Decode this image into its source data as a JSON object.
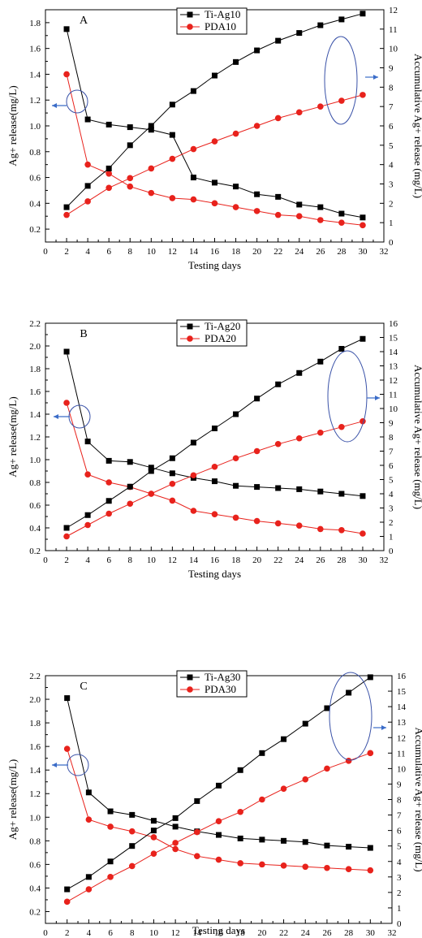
{
  "chart_data": [
    {
      "type": "line",
      "panel_label": "A",
      "xlabel": "Testing days",
      "ylabel_left": "Ag+ release(mg/L)",
      "ylabel_right": "Accumulative Ag+ release (mg/L)",
      "xlim": [
        0,
        32
      ],
      "x_ticks": [
        0,
        2,
        4,
        6,
        8,
        10,
        12,
        14,
        16,
        18,
        20,
        22,
        24,
        26,
        28,
        30,
        32
      ],
      "ylim_left": [
        0.1,
        1.9
      ],
      "y_ticks_left": [
        0.2,
        0.4,
        0.6,
        0.8,
        1.0,
        1.2,
        1.4,
        1.6,
        1.8
      ],
      "ylim_right": [
        0,
        12
      ],
      "y_ticks_right": [
        0,
        1,
        2,
        3,
        4,
        5,
        6,
        7,
        8,
        9,
        10,
        11,
        12
      ],
      "legend_position": "top-center",
      "x": [
        2,
        4,
        6,
        8,
        10,
        12,
        14,
        16,
        18,
        20,
        22,
        24,
        26,
        28,
        30
      ],
      "series": [
        {
          "name": "Ti-Ag10",
          "axis": "left",
          "color": "#000000",
          "marker": "square",
          "values": [
            1.75,
            1.05,
            1.01,
            0.99,
            0.97,
            0.93,
            0.6,
            0.56,
            0.53,
            0.47,
            0.45,
            0.39,
            0.37,
            0.32,
            0.29
          ]
        },
        {
          "name": "PDA10",
          "axis": "left",
          "color": "#e8221c",
          "marker": "circle",
          "values": [
            1.4,
            0.7,
            0.63,
            0.53,
            0.48,
            0.44,
            0.43,
            0.4,
            0.37,
            0.34,
            0.31,
            0.3,
            0.27,
            0.25,
            0.23
          ]
        },
        {
          "name": "Ti-Ag10 accumulative",
          "axis": "right",
          "color": "#000000",
          "marker": "square",
          "values": [
            1.8,
            2.9,
            3.8,
            5.0,
            6.0,
            7.1,
            7.8,
            8.6,
            9.3,
            9.9,
            10.4,
            10.8,
            11.2,
            11.5,
            11.8
          ]
        },
        {
          "name": "PDA10 accumulative",
          "axis": "right",
          "color": "#e8221c",
          "marker": "circle",
          "values": [
            1.4,
            2.1,
            2.8,
            3.3,
            3.8,
            4.3,
            4.8,
            5.2,
            5.6,
            6.0,
            6.4,
            6.7,
            7.0,
            7.3,
            7.6
          ]
        }
      ]
    },
    {
      "type": "line",
      "panel_label": "B",
      "xlabel": "Testing days",
      "ylabel_left": "Ag+ release(mg/L)",
      "ylabel_right": "Accumulative Ag+ release (mg/L)",
      "xlim": [
        0,
        32
      ],
      "x_ticks": [
        0,
        2,
        4,
        6,
        8,
        10,
        12,
        14,
        16,
        18,
        20,
        22,
        24,
        26,
        28,
        30,
        32
      ],
      "ylim_left": [
        0.2,
        2.2
      ],
      "y_ticks_left": [
        0.2,
        0.4,
        0.6,
        0.8,
        1.0,
        1.2,
        1.4,
        1.6,
        1.8,
        2.0,
        2.2
      ],
      "ylim_right": [
        0,
        16
      ],
      "y_ticks_right": [
        0,
        1,
        2,
        3,
        4,
        5,
        6,
        7,
        8,
        9,
        10,
        11,
        12,
        13,
        14,
        15,
        16
      ],
      "legend_position": "top-center",
      "x": [
        2,
        4,
        6,
        8,
        10,
        12,
        14,
        16,
        18,
        20,
        22,
        24,
        26,
        28,
        30
      ],
      "series": [
        {
          "name": "Ti-Ag20",
          "axis": "left",
          "color": "#000000",
          "marker": "square",
          "values": [
            1.95,
            1.16,
            0.99,
            0.98,
            0.93,
            0.88,
            0.84,
            0.81,
            0.77,
            0.76,
            0.75,
            0.74,
            0.72,
            0.7,
            0.68
          ]
        },
        {
          "name": "PDA20",
          "axis": "left",
          "color": "#e8221c",
          "marker": "circle",
          "values": [
            1.5,
            0.87,
            0.8,
            0.76,
            0.7,
            0.64,
            0.55,
            0.52,
            0.49,
            0.46,
            0.44,
            0.42,
            0.39,
            0.38,
            0.35
          ]
        },
        {
          "name": "Ti-Ag20 accumulative",
          "axis": "right",
          "color": "#000000",
          "marker": "square",
          "values": [
            1.6,
            2.5,
            3.5,
            4.5,
            5.6,
            6.5,
            7.6,
            8.6,
            9.6,
            10.7,
            11.7,
            12.5,
            13.3,
            14.2,
            14.9
          ]
        },
        {
          "name": "PDA20 accumulative",
          "axis": "right",
          "color": "#e8221c",
          "marker": "circle",
          "values": [
            1.0,
            1.8,
            2.6,
            3.3,
            4.0,
            4.7,
            5.3,
            5.9,
            6.5,
            7.0,
            7.5,
            7.9,
            8.3,
            8.7,
            9.1
          ]
        }
      ]
    },
    {
      "type": "line",
      "panel_label": "C",
      "xlabel": "Testing days",
      "ylabel_left": "Ag+ release(mg/L)",
      "ylabel_right": "Accumulative Ag+ release (mg/L)",
      "xlim": [
        0,
        32
      ],
      "x_ticks": [
        0,
        2,
        4,
        6,
        8,
        10,
        12,
        14,
        16,
        18,
        20,
        22,
        24,
        26,
        28,
        30,
        32
      ],
      "ylim_left": [
        0.1,
        2.2
      ],
      "y_ticks_left": [
        0.2,
        0.4,
        0.6,
        0.8,
        1.0,
        1.2,
        1.4,
        1.6,
        1.8,
        2.0,
        2.2
      ],
      "ylim_right": [
        0,
        16
      ],
      "y_ticks_right": [
        0,
        1,
        2,
        3,
        4,
        5,
        6,
        7,
        8,
        9,
        10,
        11,
        12,
        13,
        14,
        15,
        16
      ],
      "legend_position": "top-center",
      "x": [
        2,
        4,
        6,
        8,
        10,
        12,
        14,
        16,
        18,
        20,
        22,
        24,
        26,
        28,
        30
      ],
      "series": [
        {
          "name": "Ti-Ag30",
          "axis": "left",
          "color": "#000000",
          "marker": "square",
          "values": [
            2.01,
            1.21,
            1.05,
            1.02,
            0.97,
            0.92,
            0.88,
            0.85,
            0.82,
            0.81,
            0.8,
            0.79,
            0.76,
            0.75,
            0.74
          ]
        },
        {
          "name": "PDA30",
          "axis": "left",
          "color": "#e8221c",
          "marker": "circle",
          "values": [
            1.58,
            0.98,
            0.92,
            0.88,
            0.83,
            0.73,
            0.67,
            0.64,
            0.61,
            0.6,
            0.59,
            0.58,
            0.57,
            0.56,
            0.55
          ]
        },
        {
          "name": "Ti-Ag30 accumulative",
          "axis": "right",
          "color": "#000000",
          "marker": "square",
          "values": [
            2.2,
            3.0,
            4.0,
            5.0,
            6.0,
            6.8,
            7.9,
            8.9,
            9.9,
            11.0,
            11.9,
            12.9,
            13.9,
            14.9,
            15.9
          ]
        },
        {
          "name": "PDA30 accumulative",
          "axis": "right",
          "color": "#e8221c",
          "marker": "circle",
          "values": [
            1.4,
            2.2,
            3.0,
            3.7,
            4.5,
            5.2,
            5.9,
            6.6,
            7.2,
            8.0,
            8.7,
            9.3,
            10.0,
            10.5,
            11.0
          ]
        }
      ]
    }
  ]
}
